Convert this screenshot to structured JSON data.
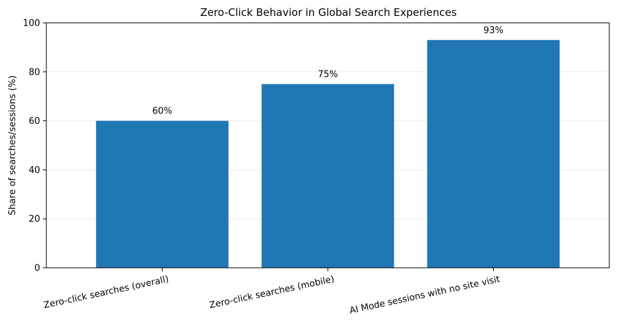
{
  "chart_data": {
    "type": "bar",
    "title": "Zero-Click Behavior in Global Search Experiences",
    "xlabel": "",
    "ylabel": "Share of searches/sessions (%)",
    "categories": [
      "Zero-click searches (overall)",
      "Zero-click searches (mobile)",
      "AI Mode sessions with no site visit"
    ],
    "values": [
      60,
      75,
      93
    ],
    "data_labels": [
      "60%",
      "75%",
      "93%"
    ],
    "ylim": [
      0,
      100
    ],
    "yticks": [
      0,
      20,
      40,
      60,
      80,
      100
    ],
    "grid": "y-axis, light",
    "legend": "none",
    "colors": {
      "bar": "#1f77b4",
      "grid": "#e6e6e6",
      "axis": "#000000"
    }
  }
}
